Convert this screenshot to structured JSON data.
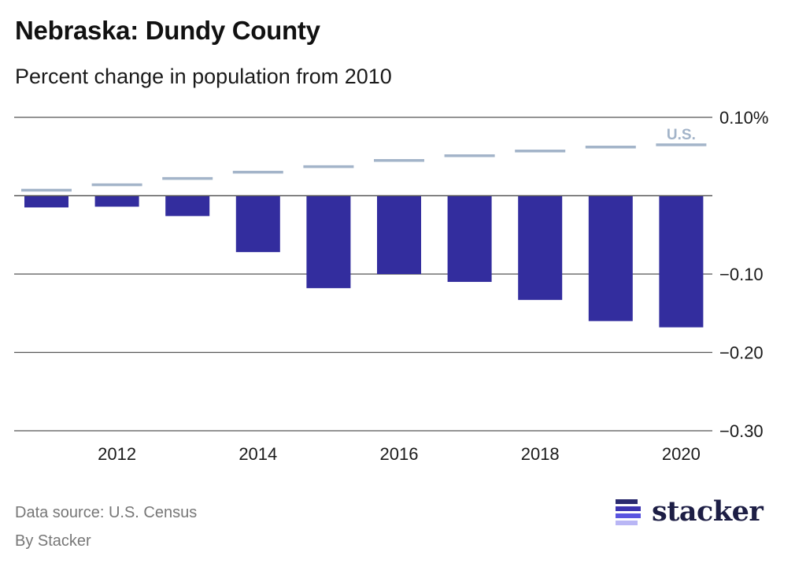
{
  "header": {
    "title": "Nebraska: Dundy County",
    "subtitle": "Percent change in population from 2010"
  },
  "footer": {
    "source": "Data source: U.S. Census",
    "byline": "By Stacker",
    "logo_text": "stacker"
  },
  "colors": {
    "bar": "#332d9e",
    "us_line": "#a3b4c9",
    "grid": "#555555",
    "logo_bars": [
      "#2a2a6e",
      "#3b33b0",
      "#5a55e0",
      "#b9b6f5"
    ]
  },
  "chart_data": {
    "type": "bar",
    "title": "Nebraska: Dundy County",
    "subtitle": "Percent change in population from 2010",
    "xlabel": "",
    "ylabel": "",
    "x": [
      2011,
      2012,
      2013,
      2014,
      2015,
      2016,
      2017,
      2018,
      2019,
      2020
    ],
    "x_tick_labels": [
      "2012",
      "2014",
      "2016",
      "2018",
      "2020"
    ],
    "x_tick_values": [
      2012,
      2014,
      2016,
      2018,
      2020
    ],
    "y_ticks": [
      0.1,
      -0.1,
      -0.2,
      -0.3
    ],
    "y_tick_labels": [
      "0.10%",
      "−0.10",
      "−0.20",
      "−0.30"
    ],
    "ylim": [
      -0.3,
      0.1
    ],
    "grid": true,
    "series": [
      {
        "name": "Dundy County",
        "type": "bar",
        "values": [
          -0.015,
          -0.014,
          -0.026,
          -0.072,
          -0.118,
          -0.1,
          -0.11,
          -0.133,
          -0.16,
          -0.168
        ]
      },
      {
        "name": "U.S.",
        "type": "dash",
        "label": "U.S.",
        "values": [
          0.007,
          0.014,
          0.022,
          0.03,
          0.037,
          0.045,
          0.051,
          0.057,
          0.062,
          0.065
        ]
      }
    ],
    "legend": "inline label above last U.S. marker"
  }
}
